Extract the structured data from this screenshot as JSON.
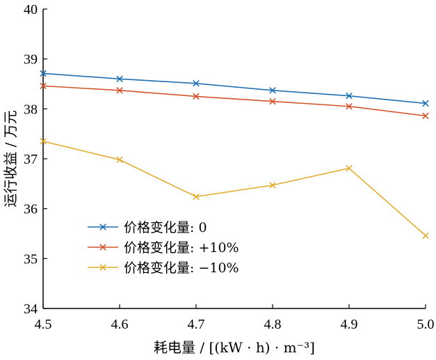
{
  "chart_data": {
    "type": "line",
    "xlabel": "耗电量 / [(kW · h) · m⁻³]",
    "ylabel": "运行收益 / 万元",
    "x": [
      4.5,
      4.6,
      4.7,
      4.8,
      4.9,
      5.0
    ],
    "xlim": [
      4.5,
      5.0
    ],
    "ylim": [
      34,
      40
    ],
    "xticks": [
      "4.5",
      "4.6",
      "4.7",
      "4.8",
      "4.9",
      "5.0"
    ],
    "yticks": [
      "34",
      "35",
      "36",
      "37",
      "38",
      "39",
      "40"
    ],
    "grid": false,
    "legend_position": "bottom-left",
    "marker": "x",
    "series": [
      {
        "name": "价格变化量: 0",
        "color": "#1f6fb4",
        "values": [
          38.71,
          38.6,
          38.51,
          38.37,
          38.26,
          38.11
        ]
      },
      {
        "name": "价格变化量: +10%",
        "color": "#d4532a",
        "values": [
          38.46,
          38.37,
          38.25,
          38.15,
          38.05,
          37.86
        ]
      },
      {
        "name": "价格变化量: −10%",
        "color": "#e2ad30",
        "values": [
          37.35,
          36.98,
          36.24,
          36.47,
          36.81,
          35.46
        ]
      }
    ]
  }
}
